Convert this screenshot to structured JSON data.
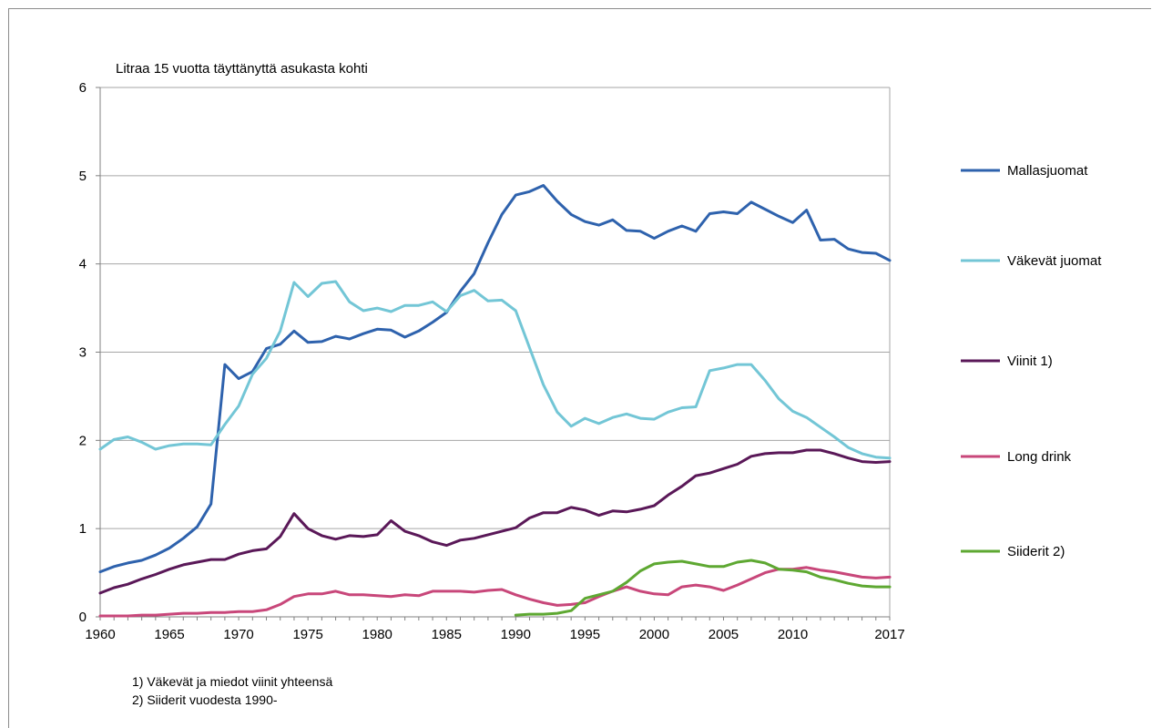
{
  "chart_data": {
    "type": "line",
    "title": "Litraa 15 vuotta täyttänyttä asukasta kohti",
    "xlabel": "",
    "ylabel": "",
    "xlim": [
      1960,
      2017
    ],
    "ylim": [
      0,
      6
    ],
    "y_ticks": [
      "0",
      "1",
      "2",
      "3",
      "4",
      "5",
      "6"
    ],
    "x_ticks": [
      1960,
      1965,
      1970,
      1975,
      1980,
      1985,
      1990,
      1995,
      2000,
      2005,
      2010,
      2017
    ],
    "grid": "horizontal",
    "legend_position": "right",
    "series": [
      {
        "name": "Mallasjuomat",
        "color": "#2e62ad",
        "x_start": 1960,
        "values": [
          0.51,
          0.57,
          0.61,
          0.64,
          0.7,
          0.78,
          0.89,
          1.02,
          1.28,
          2.86,
          2.7,
          2.78,
          3.04,
          3.09,
          3.24,
          3.11,
          3.12,
          3.18,
          3.15,
          3.21,
          3.26,
          3.25,
          3.17,
          3.24,
          3.34,
          3.45,
          3.69,
          3.89,
          4.24,
          4.56,
          4.78,
          4.82,
          4.89,
          4.71,
          4.56,
          4.48,
          4.44,
          4.5,
          4.38,
          4.37,
          4.29,
          4.37,
          4.43,
          4.37,
          4.57,
          4.59,
          4.57,
          4.7,
          4.62,
          4.54,
          4.47,
          4.61,
          4.27,
          4.28,
          4.17,
          4.13,
          4.12,
          4.04
        ]
      },
      {
        "name": "Väkevät juomat",
        "color": "#73c6d6",
        "x_start": 1960,
        "values": [
          1.9,
          2.01,
          2.04,
          1.98,
          1.9,
          1.94,
          1.96,
          1.96,
          1.95,
          2.18,
          2.39,
          2.75,
          2.93,
          3.24,
          3.79,
          3.63,
          3.78,
          3.8,
          3.57,
          3.47,
          3.5,
          3.46,
          3.53,
          3.53,
          3.57,
          3.46,
          3.64,
          3.7,
          3.58,
          3.59,
          3.47,
          3.05,
          2.63,
          2.32,
          2.16,
          2.25,
          2.19,
          2.26,
          2.3,
          2.25,
          2.24,
          2.32,
          2.37,
          2.38,
          2.79,
          2.82,
          2.86,
          2.86,
          2.68,
          2.47,
          2.33,
          2.26,
          2.15,
          2.04,
          1.92,
          1.85,
          1.81,
          1.8
        ]
      },
      {
        "name": "Viinit 1)",
        "color": "#5a1858",
        "x_start": 1960,
        "values": [
          0.27,
          0.33,
          0.37,
          0.43,
          0.48,
          0.54,
          0.59,
          0.62,
          0.65,
          0.65,
          0.71,
          0.75,
          0.77,
          0.91,
          1.17,
          1.0,
          0.92,
          0.88,
          0.92,
          0.91,
          0.93,
          1.09,
          0.97,
          0.92,
          0.85,
          0.81,
          0.87,
          0.89,
          0.93,
          0.97,
          1.01,
          1.12,
          1.18,
          1.18,
          1.24,
          1.21,
          1.15,
          1.2,
          1.19,
          1.22,
          1.26,
          1.38,
          1.48,
          1.6,
          1.63,
          1.68,
          1.73,
          1.82,
          1.85,
          1.86,
          1.86,
          1.89,
          1.89,
          1.85,
          1.8,
          1.76,
          1.75,
          1.76
        ]
      },
      {
        "name": "Long drink",
        "color": "#c8477a",
        "x_start": 1960,
        "values": [
          0.01,
          0.01,
          0.01,
          0.02,
          0.02,
          0.03,
          0.04,
          0.04,
          0.05,
          0.05,
          0.06,
          0.06,
          0.08,
          0.14,
          0.23,
          0.26,
          0.26,
          0.29,
          0.25,
          0.25,
          0.24,
          0.23,
          0.25,
          0.24,
          0.29,
          0.29,
          0.29,
          0.28,
          0.3,
          0.31,
          0.25,
          0.2,
          0.16,
          0.13,
          0.14,
          0.16,
          0.23,
          0.29,
          0.34,
          0.29,
          0.26,
          0.25,
          0.34,
          0.36,
          0.34,
          0.3,
          0.36,
          0.43,
          0.5,
          0.54,
          0.54,
          0.56,
          0.53,
          0.51,
          0.48,
          0.45,
          0.44,
          0.45
        ]
      },
      {
        "name": "Siiderit  2)",
        "color": "#5ea832",
        "x_start": 1990,
        "values": [
          0.02,
          0.03,
          0.03,
          0.04,
          0.07,
          0.21,
          0.25,
          0.29,
          0.39,
          0.52,
          0.6,
          0.62,
          0.63,
          0.6,
          0.57,
          0.57,
          0.62,
          0.64,
          0.61,
          0.54,
          0.53,
          0.51,
          0.45,
          0.42,
          0.38,
          0.35,
          0.34,
          0.34
        ]
      }
    ]
  },
  "footnotes": [
    "1) Väkevät ja miedot viinit yhteensä",
    "2) Siiderit vuodesta 1990-"
  ]
}
